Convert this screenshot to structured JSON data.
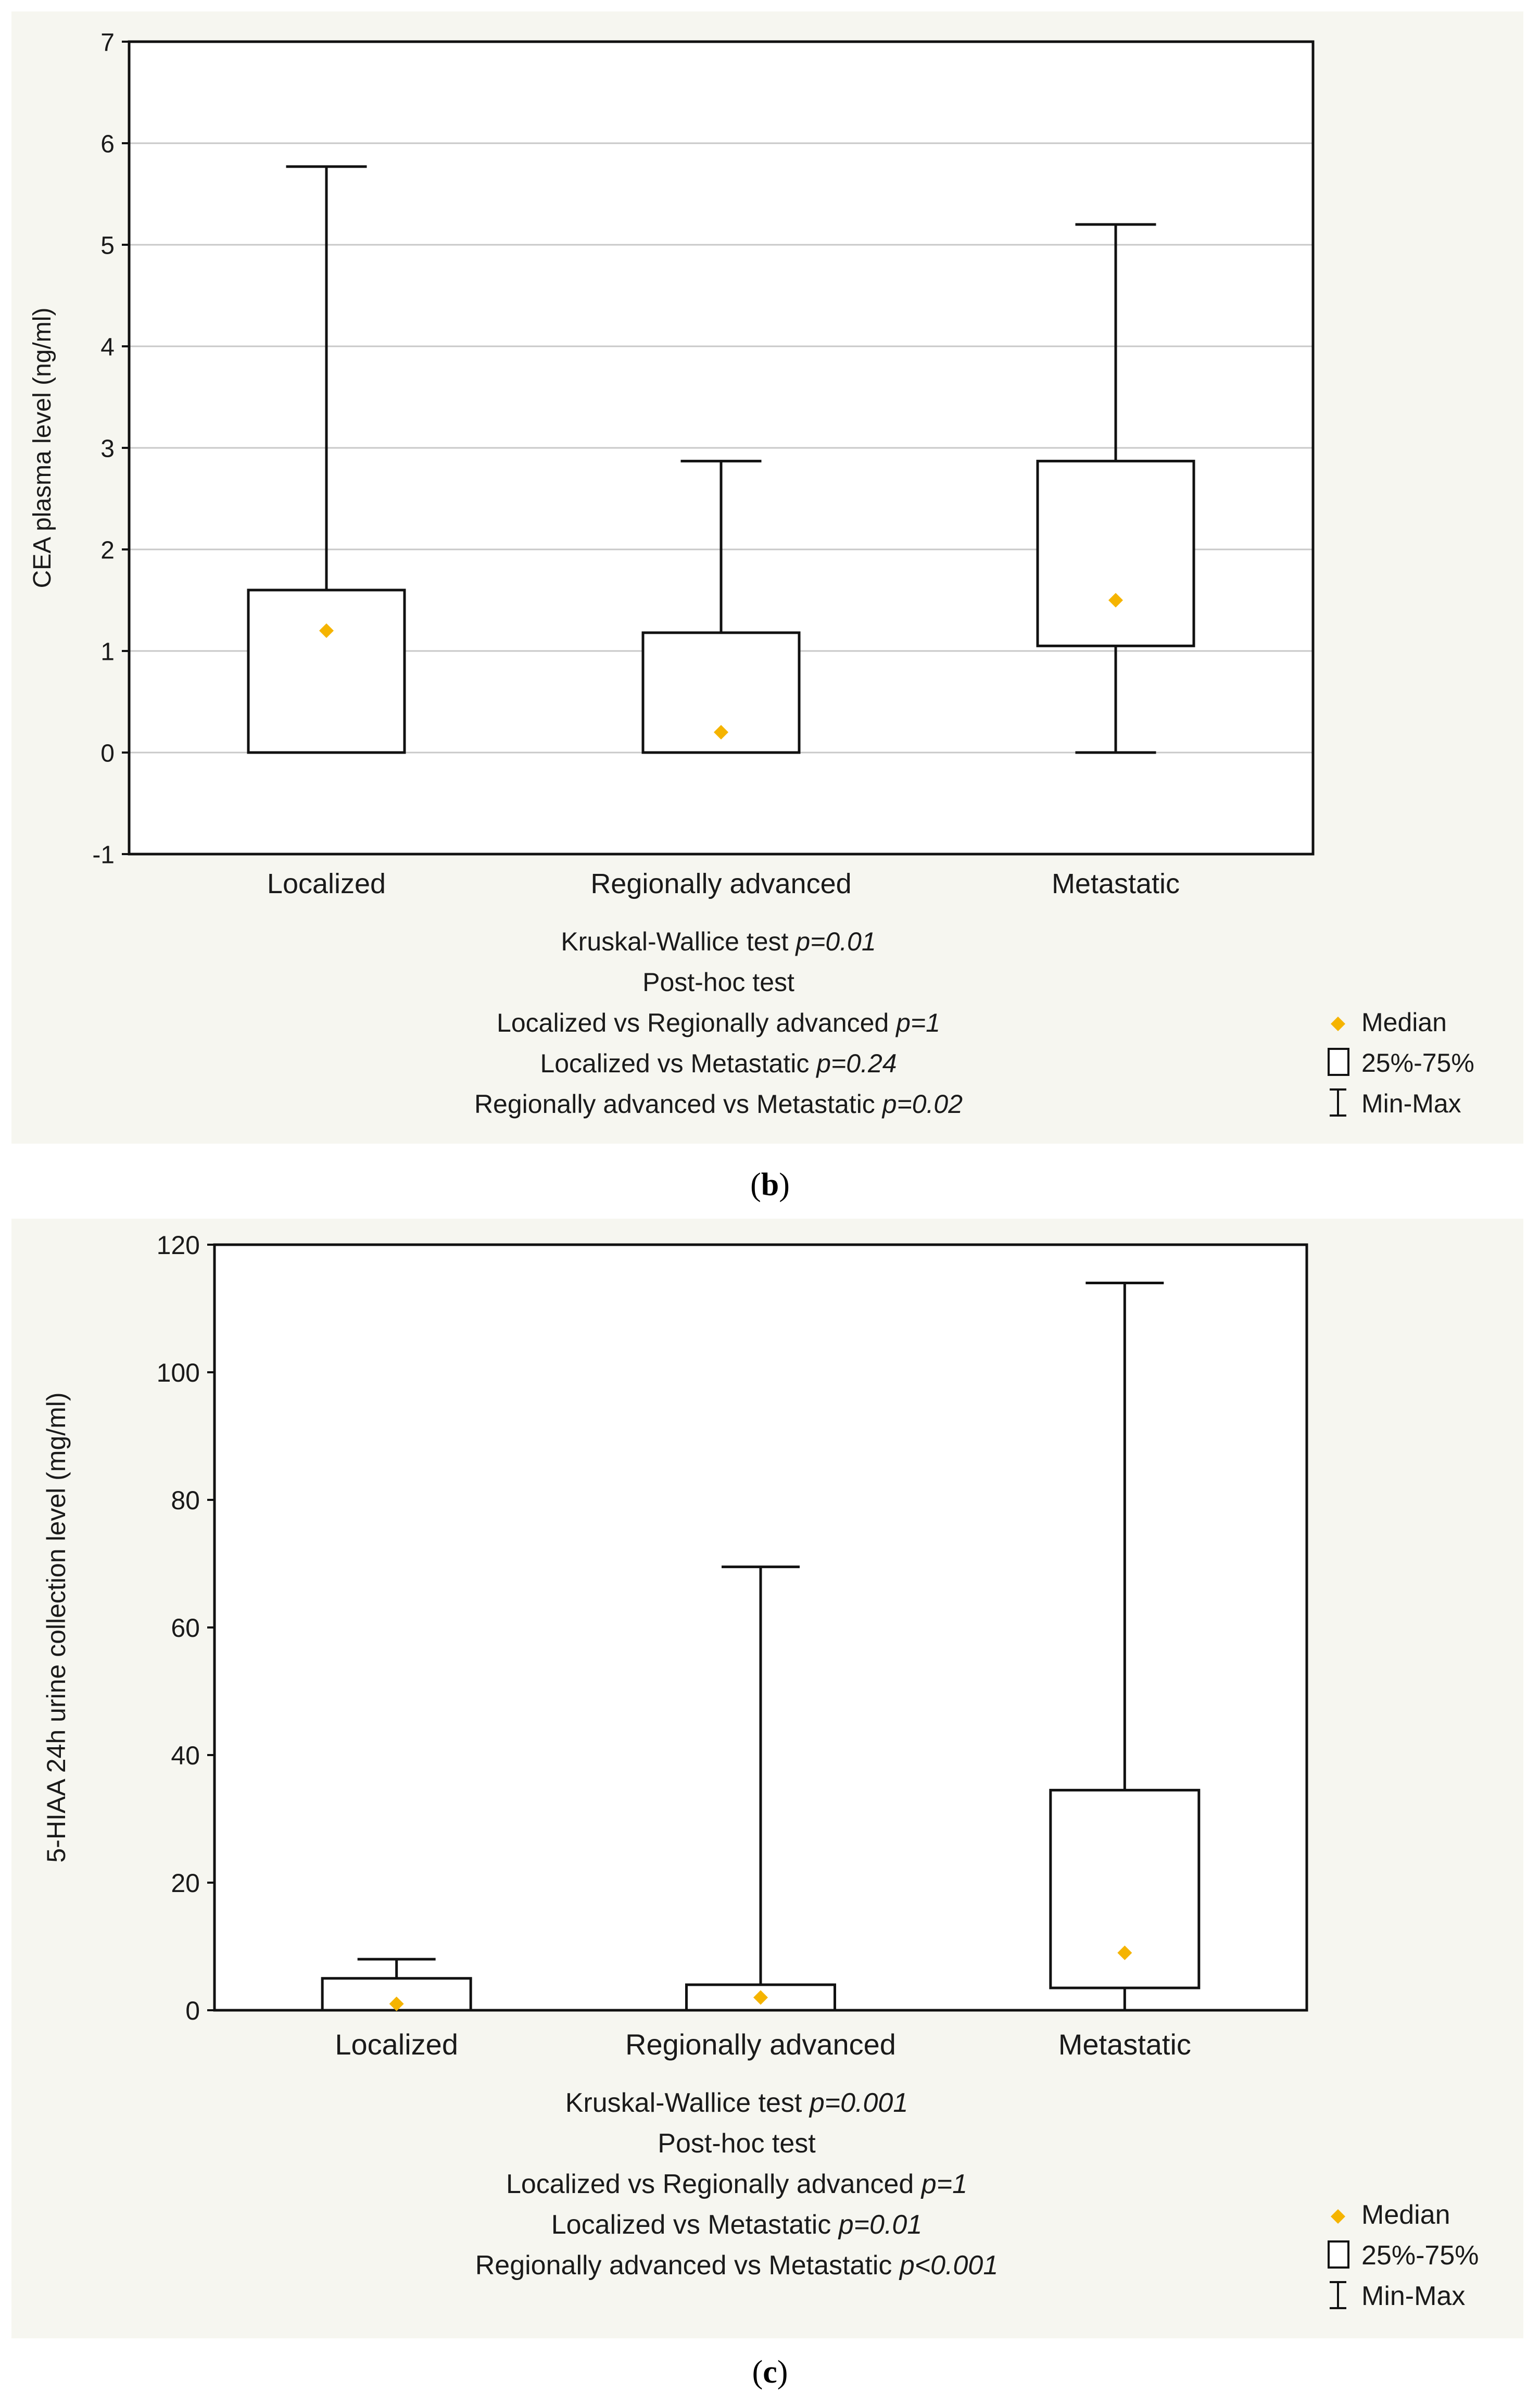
{
  "chart_data": [
    {
      "type": "box",
      "panel_label": "(b)",
      "ylabel": "CEA plasma level (ng/ml)",
      "ylim": [
        -1,
        7
      ],
      "yticks": [
        -1,
        0,
        1,
        2,
        3,
        4,
        5,
        6,
        7
      ],
      "categories": [
        "Localized",
        "Regionally advanced",
        "Metastatic"
      ],
      "series": [
        {
          "name": "Localized",
          "min": 0,
          "q1": 0,
          "median": 1.2,
          "q3": 1.6,
          "max": 5.77
        },
        {
          "name": "Regionally advanced",
          "min": 0,
          "q1": 0,
          "median": 0.2,
          "q3": 1.18,
          "max": 2.87
        },
        {
          "name": "Metastatic",
          "min": 0,
          "q1": 1.05,
          "median": 1.5,
          "q3": 2.87,
          "max": 5.2
        }
      ],
      "stats": [
        {
          "text": "Kruskal-Wallice test ",
          "p": "p=0.01"
        },
        {
          "text": "Post-hoc test",
          "p": ""
        },
        {
          "text": "Localized vs Regionally advanced ",
          "p": "p=1"
        },
        {
          "text": "Localized vs Metastatic ",
          "p": "p=0.24"
        },
        {
          "text": "Regionally advanced vs Metastatic ",
          "p": "p=0.02"
        }
      ],
      "legend": {
        "median": "Median",
        "box": "25%-75%",
        "whisker": "Min-Max"
      },
      "grid": true
    },
    {
      "type": "box",
      "panel_label": "(c)",
      "ylabel": "5-HIAA 24h urine collection level (mg/ml)",
      "ylim": [
        0,
        120
      ],
      "yticks": [
        0,
        20,
        40,
        60,
        80,
        100,
        120
      ],
      "categories": [
        "Localized",
        "Regionally advanced",
        "Metastatic"
      ],
      "series": [
        {
          "name": "Localized",
          "min": 0,
          "q1": 0,
          "median": 1,
          "q3": 5,
          "max": 8
        },
        {
          "name": "Regionally advanced",
          "min": 0,
          "q1": 0,
          "median": 2,
          "q3": 4,
          "max": 69.5
        },
        {
          "name": "Metastatic",
          "min": 0,
          "q1": 3.5,
          "median": 9,
          "q3": 34.5,
          "max": 114
        }
      ],
      "stats": [
        {
          "text": "Kruskal-Wallice test ",
          "p": "p=0.001"
        },
        {
          "text": "Post-hoc test",
          "p": ""
        },
        {
          "text": "Localized vs Regionally advanced ",
          "p": "p=1"
        },
        {
          "text": "Localized vs Metastatic ",
          "p": "p=0.01"
        },
        {
          "text": "Regionally advanced vs Metastatic ",
          "p": "p<0.001"
        }
      ],
      "legend": {
        "median": "Median",
        "box": "25%-75%",
        "whisker": "Min-Max"
      },
      "grid": false
    }
  ],
  "colors": {
    "median": "#f5b400",
    "panel_bg": "#f6f6f0",
    "grid": "#c8c8c8",
    "stroke": "#111111"
  }
}
